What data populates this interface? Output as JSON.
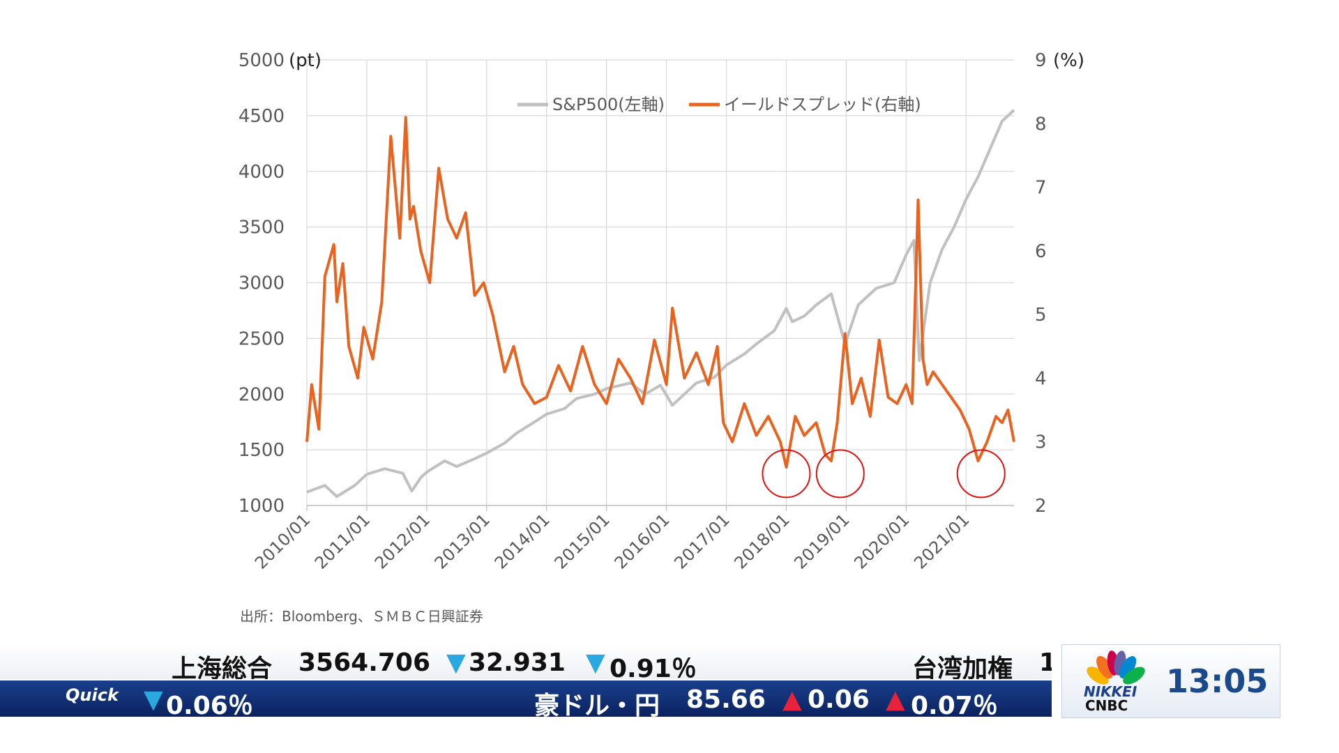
{
  "chart_data": {
    "type": "line",
    "left_axis_unit": "(pt)",
    "right_axis_unit": "(%)",
    "y_left_ticks": [
      "1000",
      "1500",
      "2000",
      "2500",
      "3000",
      "3500",
      "4000",
      "4500",
      "5000"
    ],
    "y_right_ticks": [
      "2",
      "3",
      "4",
      "5",
      "6",
      "7",
      "8",
      "9"
    ],
    "ylim_left": [
      1000,
      5000
    ],
    "ylim_right": [
      2,
      9
    ],
    "x_tick_labels": [
      "2010/01",
      "2011/01",
      "2012/01",
      "2013/01",
      "2014/01",
      "2015/01",
      "2016/01",
      "2017/01",
      "2018/01",
      "2019/01",
      "2020/01",
      "2021/01"
    ],
    "xlim": [
      2010.0,
      2021.8
    ],
    "grid": true,
    "legend_position": "top-center",
    "series": [
      {
        "name": "S&P500(左軸)",
        "axis": "left",
        "color": "#c0c0c0",
        "x": [
          2010.0,
          2010.3,
          2010.5,
          2010.8,
          2011.0,
          2011.3,
          2011.6,
          2011.75,
          2011.9,
          2012.0,
          2012.3,
          2012.5,
          2012.8,
          2013.0,
          2013.3,
          2013.5,
          2013.8,
          2014.0,
          2014.3,
          2014.5,
          2014.8,
          2015.0,
          2015.4,
          2015.65,
          2015.9,
          2016.1,
          2016.5,
          2016.8,
          2017.0,
          2017.3,
          2017.5,
          2017.8,
          2018.0,
          2018.1,
          2018.3,
          2018.5,
          2018.75,
          2018.98,
          2019.2,
          2019.5,
          2019.8,
          2020.0,
          2020.13,
          2020.22,
          2020.4,
          2020.6,
          2020.8,
          2021.0,
          2021.2,
          2021.4,
          2021.6,
          2021.8
        ],
        "values": [
          1120,
          1180,
          1080,
          1180,
          1280,
          1330,
          1290,
          1130,
          1250,
          1300,
          1400,
          1350,
          1420,
          1470,
          1560,
          1650,
          1750,
          1820,
          1870,
          1960,
          2000,
          2050,
          2100,
          2000,
          2080,
          1900,
          2100,
          2150,
          2260,
          2360,
          2450,
          2570,
          2770,
          2650,
          2700,
          2800,
          2900,
          2450,
          2800,
          2950,
          3000,
          3250,
          3380,
          2300,
          3000,
          3300,
          3500,
          3750,
          3950,
          4200,
          4450,
          4550
        ]
      },
      {
        "name": "イールドスプレッド(右軸)",
        "axis": "right",
        "color": "#e8631f",
        "x": [
          2010.0,
          2010.08,
          2010.2,
          2010.3,
          2010.45,
          2010.5,
          2010.6,
          2010.7,
          2010.85,
          2010.95,
          2011.1,
          2011.25,
          2011.4,
          2011.55,
          2011.65,
          2011.72,
          2011.78,
          2011.9,
          2012.05,
          2012.2,
          2012.35,
          2012.5,
          2012.65,
          2012.8,
          2012.95,
          2013.1,
          2013.3,
          2013.45,
          2013.6,
          2013.8,
          2014.0,
          2014.2,
          2014.4,
          2014.6,
          2014.8,
          2015.0,
          2015.2,
          2015.4,
          2015.6,
          2015.8,
          2016.0,
          2016.1,
          2016.3,
          2016.5,
          2016.7,
          2016.85,
          2016.95,
          2017.1,
          2017.3,
          2017.5,
          2017.7,
          2017.9,
          2018.0,
          2018.15,
          2018.3,
          2018.5,
          2018.65,
          2018.75,
          2018.85,
          2018.98,
          2019.1,
          2019.25,
          2019.4,
          2019.55,
          2019.7,
          2019.85,
          2020.0,
          2020.1,
          2020.2,
          2020.28,
          2020.35,
          2020.45,
          2020.6,
          2020.75,
          2020.9,
          2021.05,
          2021.2,
          2021.35,
          2021.5,
          2021.6,
          2021.7,
          2021.8
        ],
        "values": [
          3.0,
          3.9,
          3.2,
          5.6,
          6.1,
          5.2,
          5.8,
          4.5,
          4.0,
          4.8,
          4.3,
          5.2,
          7.8,
          6.2,
          8.1,
          6.5,
          6.7,
          6.0,
          5.5,
          7.3,
          6.5,
          6.2,
          6.6,
          5.3,
          5.5,
          5.0,
          4.1,
          4.5,
          3.9,
          3.6,
          3.7,
          4.2,
          3.8,
          4.5,
          3.9,
          3.6,
          4.3,
          4.0,
          3.6,
          4.6,
          3.9,
          5.1,
          4.0,
          4.4,
          3.9,
          4.5,
          3.3,
          3.0,
          3.6,
          3.1,
          3.4,
          3.0,
          2.6,
          3.4,
          3.1,
          3.3,
          2.8,
          2.7,
          3.3,
          4.7,
          3.6,
          4.0,
          3.4,
          4.6,
          3.7,
          3.6,
          3.9,
          3.6,
          6.8,
          4.3,
          3.9,
          4.1,
          3.9,
          3.7,
          3.5,
          3.2,
          2.7,
          3.0,
          3.4,
          3.3,
          3.5,
          3.0
        ]
      }
    ],
    "highlight_circles": [
      {
        "x": 2018.0,
        "y_right": 2.5
      },
      {
        "x": 2018.9,
        "y_right": 2.5
      },
      {
        "x": 2021.25,
        "y_right": 2.5
      }
    ]
  },
  "source_note": "出所：Bloomberg、ＳＭＢＣ日興証券",
  "ticker": {
    "top": {
      "index_name": "上海総合",
      "value": "3564.706",
      "change_arrow": "▼",
      "change": "32.931",
      "pct_arrow": "▼",
      "pct": "0.91％",
      "next_name": "台湾加権",
      "next_value": "1"
    },
    "bottom": {
      "brand": "Quick",
      "lead_arrow": "▼",
      "lead_pct": "0.06％",
      "pair_name": "豪ドル・円",
      "value": "85.66",
      "change_arrow": "▲",
      "change": "0.06",
      "pct_arrow": "▲",
      "pct": "0.07％"
    }
  },
  "broadcast": {
    "logo_line1": "NIKKEI",
    "logo_line2": "CNBC",
    "time": "13:05"
  }
}
